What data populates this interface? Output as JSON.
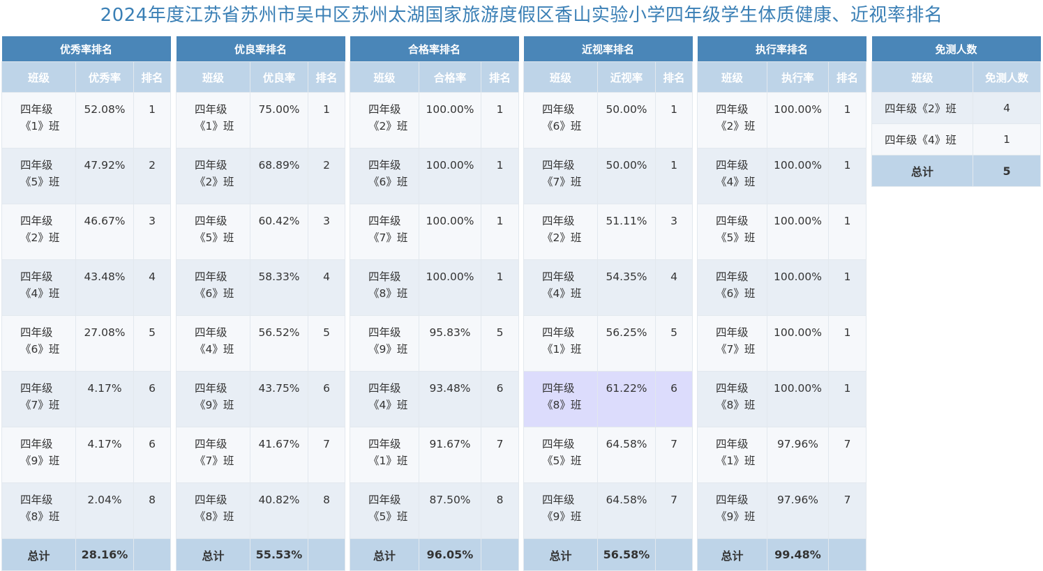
{
  "title": "2024年度江苏省苏州市吴中区苏州太湖国家旅游度假区香山实验小学四年级学生体质健康、近视率排名",
  "total_label": "总计",
  "tables": [
    {
      "heading": "优秀率排名",
      "cols": [
        "班级",
        "优秀率",
        "排名"
      ],
      "rows": [
        {
          "cls1": "四年级",
          "cls2": "《1》班",
          "val": "52.08%",
          "rank": "1"
        },
        {
          "cls1": "四年级",
          "cls2": "《5》班",
          "val": "47.92%",
          "rank": "2"
        },
        {
          "cls1": "四年级",
          "cls2": "《2》班",
          "val": "46.67%",
          "rank": "3"
        },
        {
          "cls1": "四年级",
          "cls2": "《4》班",
          "val": "43.48%",
          "rank": "4"
        },
        {
          "cls1": "四年级",
          "cls2": "《6》班",
          "val": "27.08%",
          "rank": "5"
        },
        {
          "cls1": "四年级",
          "cls2": "《7》班",
          "val": "4.17%",
          "rank": "6"
        },
        {
          "cls1": "四年级",
          "cls2": "《9》班",
          "val": "4.17%",
          "rank": "6"
        },
        {
          "cls1": "四年级",
          "cls2": "《8》班",
          "val": "2.04%",
          "rank": "8"
        }
      ],
      "total": "28.16%"
    },
    {
      "heading": "优良率排名",
      "cols": [
        "班级",
        "优良率",
        "排名"
      ],
      "rows": [
        {
          "cls1": "四年级",
          "cls2": "《1》班",
          "val": "75.00%",
          "rank": "1"
        },
        {
          "cls1": "四年级",
          "cls2": "《2》班",
          "val": "68.89%",
          "rank": "2"
        },
        {
          "cls1": "四年级",
          "cls2": "《5》班",
          "val": "60.42%",
          "rank": "3"
        },
        {
          "cls1": "四年级",
          "cls2": "《6》班",
          "val": "58.33%",
          "rank": "4"
        },
        {
          "cls1": "四年级",
          "cls2": "《4》班",
          "val": "56.52%",
          "rank": "5"
        },
        {
          "cls1": "四年级",
          "cls2": "《9》班",
          "val": "43.75%",
          "rank": "6"
        },
        {
          "cls1": "四年级",
          "cls2": "《7》班",
          "val": "41.67%",
          "rank": "7"
        },
        {
          "cls1": "四年级",
          "cls2": "《8》班",
          "val": "40.82%",
          "rank": "8"
        }
      ],
      "total": "55.53%"
    },
    {
      "heading": "合格率排名",
      "cols": [
        "班级",
        "合格率",
        "排名"
      ],
      "rows": [
        {
          "cls1": "四年级",
          "cls2": "《2》班",
          "val": "100.00%",
          "rank": "1"
        },
        {
          "cls1": "四年级",
          "cls2": "《6》班",
          "val": "100.00%",
          "rank": "1"
        },
        {
          "cls1": "四年级",
          "cls2": "《7》班",
          "val": "100.00%",
          "rank": "1"
        },
        {
          "cls1": "四年级",
          "cls2": "《8》班",
          "val": "100.00%",
          "rank": "1"
        },
        {
          "cls1": "四年级",
          "cls2": "《9》班",
          "val": "95.83%",
          "rank": "5"
        },
        {
          "cls1": "四年级",
          "cls2": "《4》班",
          "val": "93.48%",
          "rank": "6"
        },
        {
          "cls1": "四年级",
          "cls2": "《1》班",
          "val": "91.67%",
          "rank": "7"
        },
        {
          "cls1": "四年级",
          "cls2": "《5》班",
          "val": "87.50%",
          "rank": "8"
        }
      ],
      "total": "96.05%"
    },
    {
      "heading": "近视率排名",
      "cols": [
        "班级",
        "近视率",
        "排名"
      ],
      "rows": [
        {
          "cls1": "四年级",
          "cls2": "《6》班",
          "val": "50.00%",
          "rank": "1"
        },
        {
          "cls1": "四年级",
          "cls2": "《7》班",
          "val": "50.00%",
          "rank": "1"
        },
        {
          "cls1": "四年级",
          "cls2": "《2》班",
          "val": "51.11%",
          "rank": "3"
        },
        {
          "cls1": "四年级",
          "cls2": "《4》班",
          "val": "54.35%",
          "rank": "4"
        },
        {
          "cls1": "四年级",
          "cls2": "《1》班",
          "val": "56.25%",
          "rank": "5"
        },
        {
          "cls1": "四年级",
          "cls2": "《8》班",
          "val": "61.22%",
          "rank": "6",
          "highlight": true
        },
        {
          "cls1": "四年级",
          "cls2": "《5》班",
          "val": "64.58%",
          "rank": "7"
        },
        {
          "cls1": "四年级",
          "cls2": "《9》班",
          "val": "64.58%",
          "rank": "7"
        }
      ],
      "total": "56.58%"
    },
    {
      "heading": "执行率排名",
      "cols": [
        "班级",
        "执行率",
        "排名"
      ],
      "rows": [
        {
          "cls1": "四年级",
          "cls2": "《2》班",
          "val": "100.00%",
          "rank": "1"
        },
        {
          "cls1": "四年级",
          "cls2": "《4》班",
          "val": "100.00%",
          "rank": "1"
        },
        {
          "cls1": "四年级",
          "cls2": "《5》班",
          "val": "100.00%",
          "rank": "1"
        },
        {
          "cls1": "四年级",
          "cls2": "《6》班",
          "val": "100.00%",
          "rank": "1"
        },
        {
          "cls1": "四年级",
          "cls2": "《7》班",
          "val": "100.00%",
          "rank": "1"
        },
        {
          "cls1": "四年级",
          "cls2": "《8》班",
          "val": "100.00%",
          "rank": "1"
        },
        {
          "cls1": "四年级",
          "cls2": "《1》班",
          "val": "97.96%",
          "rank": "7"
        },
        {
          "cls1": "四年级",
          "cls2": "《9》班",
          "val": "97.96%",
          "rank": "7"
        }
      ],
      "total": "99.48%"
    }
  ],
  "exempt": {
    "heading": "免测人数",
    "cols": [
      "班级",
      "免测人数"
    ],
    "rows": [
      {
        "name": "四年级《2》班",
        "count": "4"
      },
      {
        "name": "四年级《4》班",
        "count": "1"
      }
    ],
    "total": "5"
  },
  "colors": {
    "title": "#3a7fb5",
    "group_header": "#4a86b8",
    "column_header": "#bed4e8",
    "row_light": "#f6f8fb",
    "row_dark": "#e8eef5",
    "highlight_row": "#dcdcfc"
  }
}
